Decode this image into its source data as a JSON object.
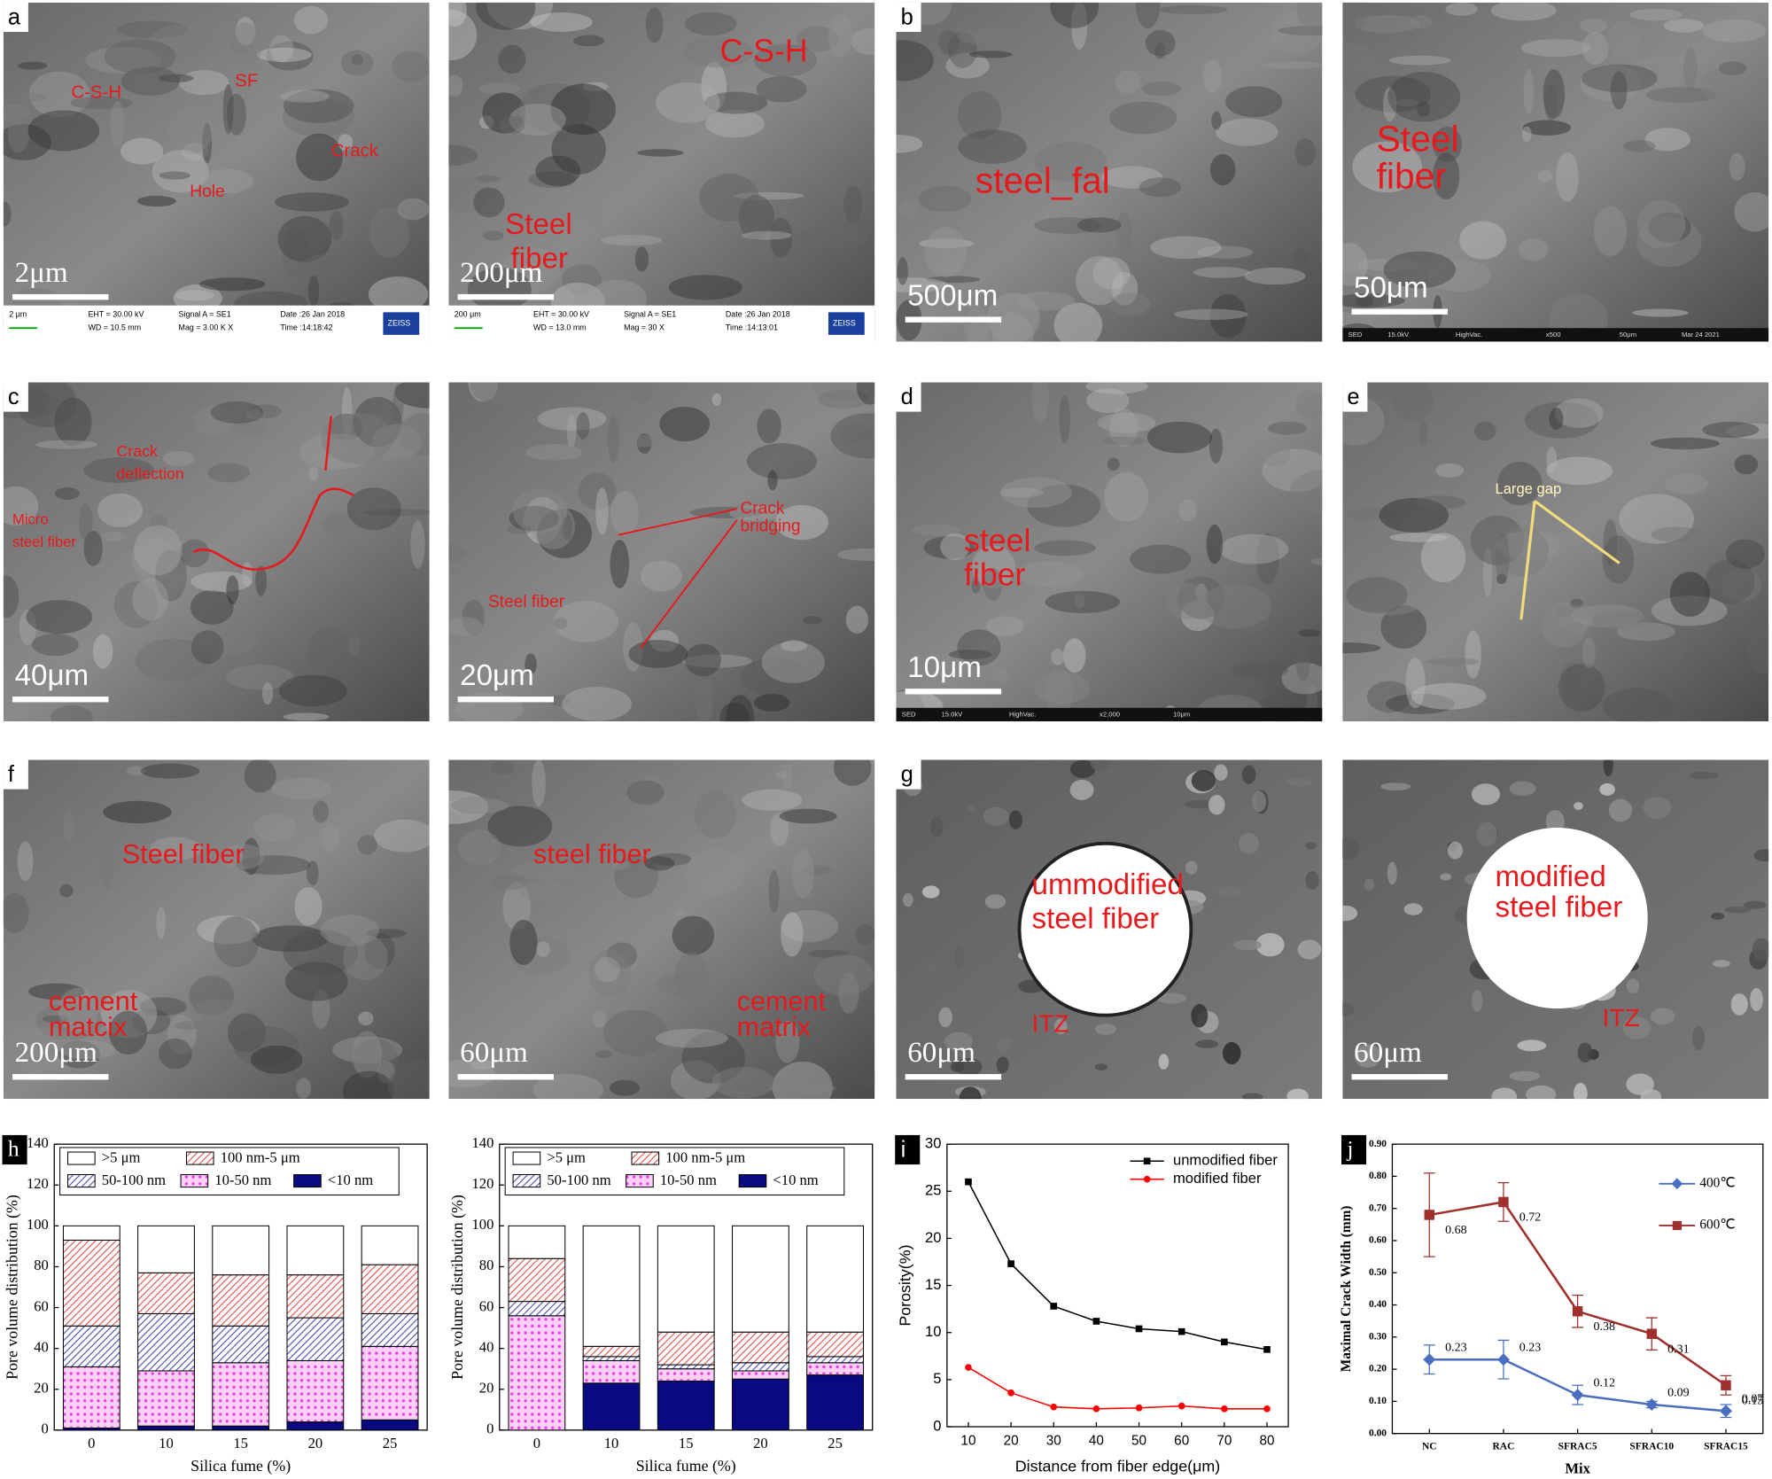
{
  "panels": [
    {
      "letter": "a",
      "scale_bar": "2μm",
      "annotations": [
        "C-S-H",
        "SF",
        "Crack",
        "Hole"
      ],
      "info_bar": [
        "2 μm",
        "EHT = 30.00 kV",
        "WD = 10.5 mm",
        "Signal A = SE1",
        "Mag = 3.00 K X",
        "Date :26 Jan 2018",
        "Time :14:18:42",
        "ZEISS"
      ]
    },
    {
      "scale_bar": "200μm",
      "annotations": [
        "C-S-H",
        "Steel",
        "fiber"
      ],
      "info_bar": [
        "200 μm",
        "EHT = 30.00 kV",
        "WD = 13.0 mm",
        "Signal A = SE1",
        "Mag = 30 X",
        "Date :26 Jan 2018",
        "Time :14:13:01",
        "ZEISS"
      ]
    },
    {
      "letter": "b",
      "scale_bar": "500μm",
      "annotations": [
        "steel_fal"
      ]
    },
    {
      "scale_bar": "50μm",
      "annotations": [
        "Steel",
        "fiber"
      ],
      "info_bar": [
        "SED",
        "15.0kV",
        "HighVac.",
        "x500",
        "50μm",
        "Mar 24 2021"
      ]
    },
    {
      "letter": "c",
      "scale_bar": "40μm",
      "annotations": [
        "Crack",
        "deflection",
        "Micro",
        "steel fiber"
      ]
    },
    {
      "scale_bar": "20μm",
      "annotations": [
        "Crack",
        "bridging",
        "Steel fiber"
      ]
    },
    {
      "letter": "d",
      "scale_bar": "10μm",
      "annotations": [
        "steel",
        "fiber"
      ],
      "info_bar": [
        "SED",
        "15.0kV",
        "HighVac.",
        "x2,000",
        "10μm"
      ]
    },
    {
      "letter": "e",
      "annotations": [
        "Large gap"
      ]
    },
    {
      "letter": "f",
      "scale_bar": "200μm",
      "annotations": [
        "Steel fiber",
        "cement",
        "matcix"
      ]
    },
    {
      "scale_bar": "60μm",
      "annotations": [
        "steel fiber",
        "cement",
        "matrix"
      ]
    },
    {
      "letter": "g",
      "scale_bar": "60μm",
      "annotations": [
        "ummodified",
        "steel fiber",
        "ITZ"
      ]
    },
    {
      "scale_bar": "60μm",
      "annotations": [
        "modified",
        "steel fiber",
        "ITZ"
      ]
    }
  ],
  "chart_data": [
    {
      "type": "stacked_bar",
      "label": "h",
      "categories": [
        "0",
        "10",
        "15",
        "20",
        "25"
      ],
      "series": [
        {
          "name": ">5 μm",
          "color": "#ffffff",
          "hatch": "none",
          "values": [
            7,
            23,
            24,
            24,
            19
          ]
        },
        {
          "name": "100 nm-5 μm",
          "color": "#e0413c",
          "hatch": "diagonal",
          "values": [
            42,
            20,
            25,
            21,
            24
          ]
        },
        {
          "name": "50-100 nm",
          "color": "#3b3bb0",
          "hatch": "diagonal",
          "values": [
            20,
            28,
            18,
            21,
            16
          ]
        },
        {
          "name": "10-50 nm",
          "color": "#e83ee0",
          "hatch": "dots",
          "values": [
            30,
            27,
            31,
            30,
            36
          ]
        },
        {
          "name": "<10 nm",
          "color": "#0a0a80",
          "hatch": "none",
          "values": [
            1,
            2,
            2,
            4,
            5
          ]
        }
      ],
      "ylim": [
        0,
        140
      ],
      "yticks": [
        0,
        20,
        40,
        60,
        80,
        100,
        120,
        140
      ],
      "xlabel": "Silica fume (%)",
      "ylabel": "Pore volume distribution (%)",
      "legend": "top"
    },
    {
      "type": "stacked_bar",
      "categories": [
        "0",
        "10",
        "15",
        "20",
        "25"
      ],
      "series": [
        {
          "name": ">5 μm",
          "color": "#ffffff",
          "hatch": "none",
          "values": [
            16,
            59,
            52,
            52,
            52
          ]
        },
        {
          "name": "100 nm-5 μm",
          "color": "#e0413c",
          "hatch": "diagonal",
          "values": [
            21,
            5,
            16,
            15,
            12
          ]
        },
        {
          "name": "50-100 nm",
          "color": "#3b3bb0",
          "hatch": "diagonal",
          "values": [
            7,
            2,
            2,
            4,
            3
          ]
        },
        {
          "name": "10-50 nm",
          "color": "#e83ee0",
          "hatch": "dots",
          "values": [
            56,
            11,
            6,
            4,
            6
          ]
        },
        {
          "name": "<10 nm",
          "color": "#0a0a80",
          "hatch": "none",
          "values": [
            0,
            23,
            24,
            25,
            27
          ]
        }
      ],
      "ylim": [
        0,
        140
      ],
      "yticks": [
        0,
        20,
        40,
        60,
        80,
        100,
        120,
        140
      ],
      "xlabel": "Silica fume (%)",
      "ylabel": "Pore volume distribution (%)",
      "legend": "top"
    },
    {
      "type": "line",
      "label": "i",
      "x": [
        10,
        20,
        30,
        40,
        50,
        60,
        70,
        80
      ],
      "series": [
        {
          "name": "unmodified fiber",
          "color": "#000000",
          "marker": "square",
          "values": [
            26,
            17.3,
            12.8,
            11.2,
            10.4,
            10.1,
            9.0,
            8.2
          ]
        },
        {
          "name": "modified fiber",
          "color": "#ff0000",
          "marker": "circle",
          "values": [
            6.3,
            3.6,
            2.1,
            1.9,
            2.0,
            2.2,
            1.9,
            1.9
          ]
        }
      ],
      "xlim": [
        5,
        85
      ],
      "xticks": [
        10,
        20,
        30,
        40,
        50,
        60,
        70,
        80
      ],
      "ylim": [
        0,
        30
      ],
      "yticks": [
        0,
        5,
        10,
        15,
        20,
        25,
        30
      ],
      "xlabel": "Distance from fiber edge(μm)",
      "ylabel": "Porosity(%)",
      "legend": "upper right"
    },
    {
      "type": "line",
      "label": "j",
      "categories": [
        "NC",
        "RAC",
        "SFRAC5",
        "SFRAC10",
        "SFRAC15"
      ],
      "series": [
        {
          "name": "400℃",
          "color": "#4a6fc0",
          "marker": "diamond",
          "values": [
            0.23,
            0.23,
            0.12,
            0.09,
            0.07
          ],
          "errors": [
            0.045,
            0.06,
            0.03,
            0.01,
            0.02
          ]
        },
        {
          "name": "600℃",
          "color": "#a0302e",
          "marker": "square",
          "values": [
            0.68,
            0.72,
            0.38,
            0.31,
            0.15
          ],
          "errors": [
            0.13,
            0.06,
            0.05,
            0.05,
            0.03
          ]
        }
      ],
      "data_labels": true,
      "ylim": [
        0,
        0.9
      ],
      "yticks": [
        {
          "value": 0,
          "label": "0.00"
        },
        {
          "value": 0.1,
          "label": "0.10"
        },
        {
          "value": 0.2,
          "label": "0.20"
        },
        {
          "value": 0.3,
          "label": "0.30"
        },
        {
          "value": 0.4,
          "label": "0.40"
        },
        {
          "value": 0.5,
          "label": "0.50"
        },
        {
          "value": 0.6,
          "label": "0.60"
        },
        {
          "value": 0.7,
          "label": "0.70"
        },
        {
          "value": 0.8,
          "label": "0.80"
        },
        {
          "value": 0.9,
          "label": "0.90"
        }
      ],
      "xlabel": "Mix",
      "ylabel": "Maximal Crack Width (mm)",
      "legend": "right"
    }
  ]
}
